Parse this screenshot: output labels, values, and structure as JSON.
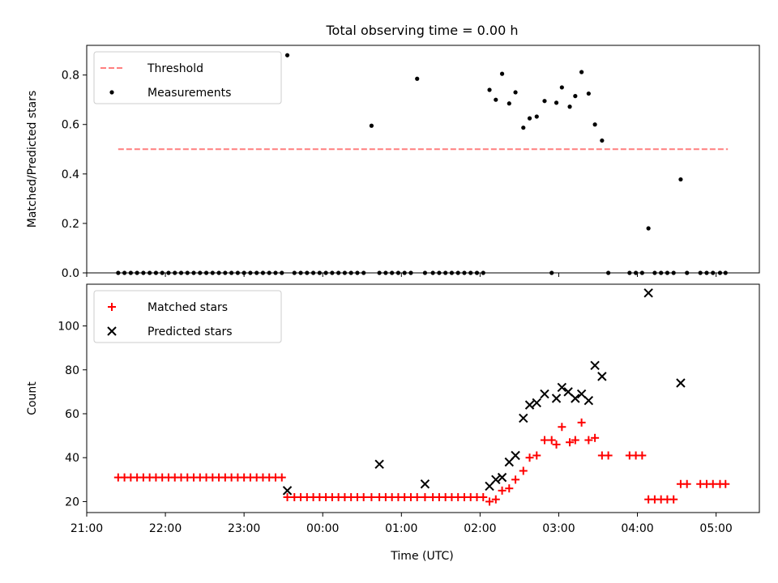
{
  "chart_data": [
    {
      "type": "scatter",
      "title": "Total observing time = 0.00 h",
      "xlabel": "",
      "ylabel": "Matched/Predicted stars",
      "xlim": [
        -3.0,
        5.55
      ],
      "ylim": [
        0,
        0.92
      ],
      "yticks": [
        0.0,
        0.2,
        0.4,
        0.6,
        0.8
      ],
      "ytick_labels": [
        "0.0",
        "0.2",
        "0.4",
        "0.6",
        "0.8"
      ],
      "xticks": [
        -3,
        -2,
        -1,
        0,
        1,
        2,
        3,
        4,
        5
      ],
      "legend": "top-left",
      "series": [
        {
          "name": "Threshold",
          "kind": "line",
          "style": "dashed",
          "color": "#ff7f7f",
          "x": [
            -2.6,
            5.15
          ],
          "y": [
            0.5,
            0.5
          ]
        },
        {
          "name": "Measurements",
          "kind": "scatter",
          "marker": "dot",
          "color": "#000000",
          "x": [
            -2.6,
            -2.52,
            -2.44,
            -2.36,
            -2.28,
            -2.2,
            -2.12,
            -2.04,
            -1.96,
            -1.88,
            -1.8,
            -1.72,
            -1.64,
            -1.56,
            -1.48,
            -1.4,
            -1.32,
            -1.24,
            -1.16,
            -1.08,
            -1.0,
            -0.92,
            -0.84,
            -0.76,
            -0.68,
            -0.6,
            -0.52,
            -0.45,
            -0.36,
            -0.28,
            -0.2,
            -0.12,
            -0.04,
            0.04,
            0.12,
            0.2,
            0.28,
            0.36,
            0.44,
            0.52,
            0.62,
            0.72,
            0.8,
            0.88,
            0.96,
            1.04,
            1.12,
            1.2,
            1.3,
            1.4,
            1.48,
            1.56,
            1.64,
            1.72,
            1.8,
            1.88,
            1.96,
            2.04,
            2.12,
            2.2,
            2.28,
            2.37,
            2.45,
            2.55,
            2.63,
            2.72,
            2.82,
            2.91,
            2.97,
            3.04,
            3.14,
            3.21,
            3.29,
            3.38,
            3.46,
            3.55,
            3.63,
            3.9,
            3.98,
            4.06,
            4.14,
            4.22,
            4.3,
            4.38,
            4.46,
            4.55,
            4.63,
            4.8,
            4.88,
            4.96,
            5.05,
            5.12
          ],
          "y": [
            0,
            0,
            0,
            0,
            0,
            0,
            0,
            0,
            0,
            0,
            0,
            0,
            0,
            0,
            0,
            0,
            0,
            0,
            0,
            0,
            0,
            0,
            0,
            0,
            0,
            0,
            0,
            0.88,
            0,
            0,
            0,
            0,
            0,
            0,
            0,
            0,
            0,
            0,
            0,
            0,
            0.595,
            0,
            0,
            0,
            0,
            0,
            0,
            0.785,
            0,
            0,
            0,
            0,
            0,
            0,
            0,
            0,
            0,
            0,
            0.74,
            0.7,
            0.805,
            0.685,
            0.73,
            0.587,
            0.625,
            0.632,
            0.695,
            0,
            0.688,
            0.75,
            0.672,
            0.715,
            0.812,
            0.725,
            0.6,
            0.535,
            0,
            0,
            0,
            0,
            0.18,
            0,
            0,
            0,
            0,
            0.378,
            0,
            0,
            0,
            0,
            0,
            0
          ]
        }
      ]
    },
    {
      "type": "scatter",
      "title": "",
      "xlabel": "Time (UTC)",
      "ylabel": "Count",
      "xlim": [
        -3.0,
        5.55
      ],
      "ylim": [
        15,
        119
      ],
      "yticks": [
        20,
        40,
        60,
        80,
        100
      ],
      "ytick_labels": [
        "20",
        "40",
        "60",
        "80",
        "100"
      ],
      "xticks": [
        -3,
        -2,
        -1,
        0,
        1,
        2,
        3,
        4,
        5
      ],
      "xtick_labels": [
        "21:00",
        "22:00",
        "23:00",
        "00:00",
        "01:00",
        "02:00",
        "03:00",
        "04:00",
        "05:00"
      ],
      "legend": "top-left",
      "series": [
        {
          "name": "Matched stars",
          "kind": "scatter",
          "marker": "plus",
          "color": "#ff0000",
          "x": [
            -2.6,
            -2.52,
            -2.44,
            -2.36,
            -2.28,
            -2.2,
            -2.12,
            -2.04,
            -1.96,
            -1.88,
            -1.8,
            -1.72,
            -1.64,
            -1.56,
            -1.48,
            -1.4,
            -1.32,
            -1.24,
            -1.16,
            -1.08,
            -1.0,
            -0.92,
            -0.84,
            -0.76,
            -0.68,
            -0.6,
            -0.52,
            -0.45,
            -0.36,
            -0.28,
            -0.2,
            -0.12,
            -0.04,
            0.04,
            0.12,
            0.2,
            0.28,
            0.36,
            0.44,
            0.52,
            0.62,
            0.72,
            0.8,
            0.88,
            0.96,
            1.04,
            1.12,
            1.2,
            1.3,
            1.4,
            1.48,
            1.56,
            1.64,
            1.72,
            1.8,
            1.88,
            1.96,
            2.04,
            2.12,
            2.2,
            2.28,
            2.37,
            2.45,
            2.55,
            2.63,
            2.72,
            2.82,
            2.91,
            2.97,
            3.04,
            3.14,
            3.21,
            3.29,
            3.38,
            3.46,
            3.55,
            3.63,
            3.9,
            3.98,
            4.06,
            4.14,
            4.22,
            4.3,
            4.38,
            4.46,
            4.55,
            4.63,
            4.8,
            4.88,
            4.96,
            5.05,
            5.12
          ],
          "y": [
            31,
            31,
            31,
            31,
            31,
            31,
            31,
            31,
            31,
            31,
            31,
            31,
            31,
            31,
            31,
            31,
            31,
            31,
            31,
            31,
            31,
            31,
            31,
            31,
            31,
            31,
            31,
            22,
            22,
            22,
            22,
            22,
            22,
            22,
            22,
            22,
            22,
            22,
            22,
            22,
            22,
            22,
            22,
            22,
            22,
            22,
            22,
            22,
            22,
            22,
            22,
            22,
            22,
            22,
            22,
            22,
            22,
            22,
            20,
            21,
            25,
            26,
            30,
            34,
            40,
            41,
            48,
            48,
            46,
            54,
            47,
            48,
            56,
            48,
            49,
            41,
            41,
            41,
            41,
            41,
            21,
            21,
            21,
            21,
            21,
            28,
            28,
            28,
            28,
            28,
            28,
            28
          ]
        },
        {
          "name": "Predicted stars",
          "kind": "scatter",
          "marker": "x",
          "color": "#000000",
          "x": [
            -0.45,
            0.72,
            1.3,
            2.12,
            2.2,
            2.28,
            2.37,
            2.45,
            2.55,
            2.63,
            2.72,
            2.82,
            2.97,
            3.04,
            3.12,
            3.21,
            3.29,
            3.38,
            3.46,
            3.55,
            4.14,
            4.55
          ],
          "y": [
            25,
            37,
            28,
            27,
            30,
            31,
            38,
            41,
            58,
            64,
            65,
            69,
            67,
            72,
            70,
            67,
            69,
            66,
            82,
            77,
            115,
            74
          ]
        }
      ]
    }
  ]
}
